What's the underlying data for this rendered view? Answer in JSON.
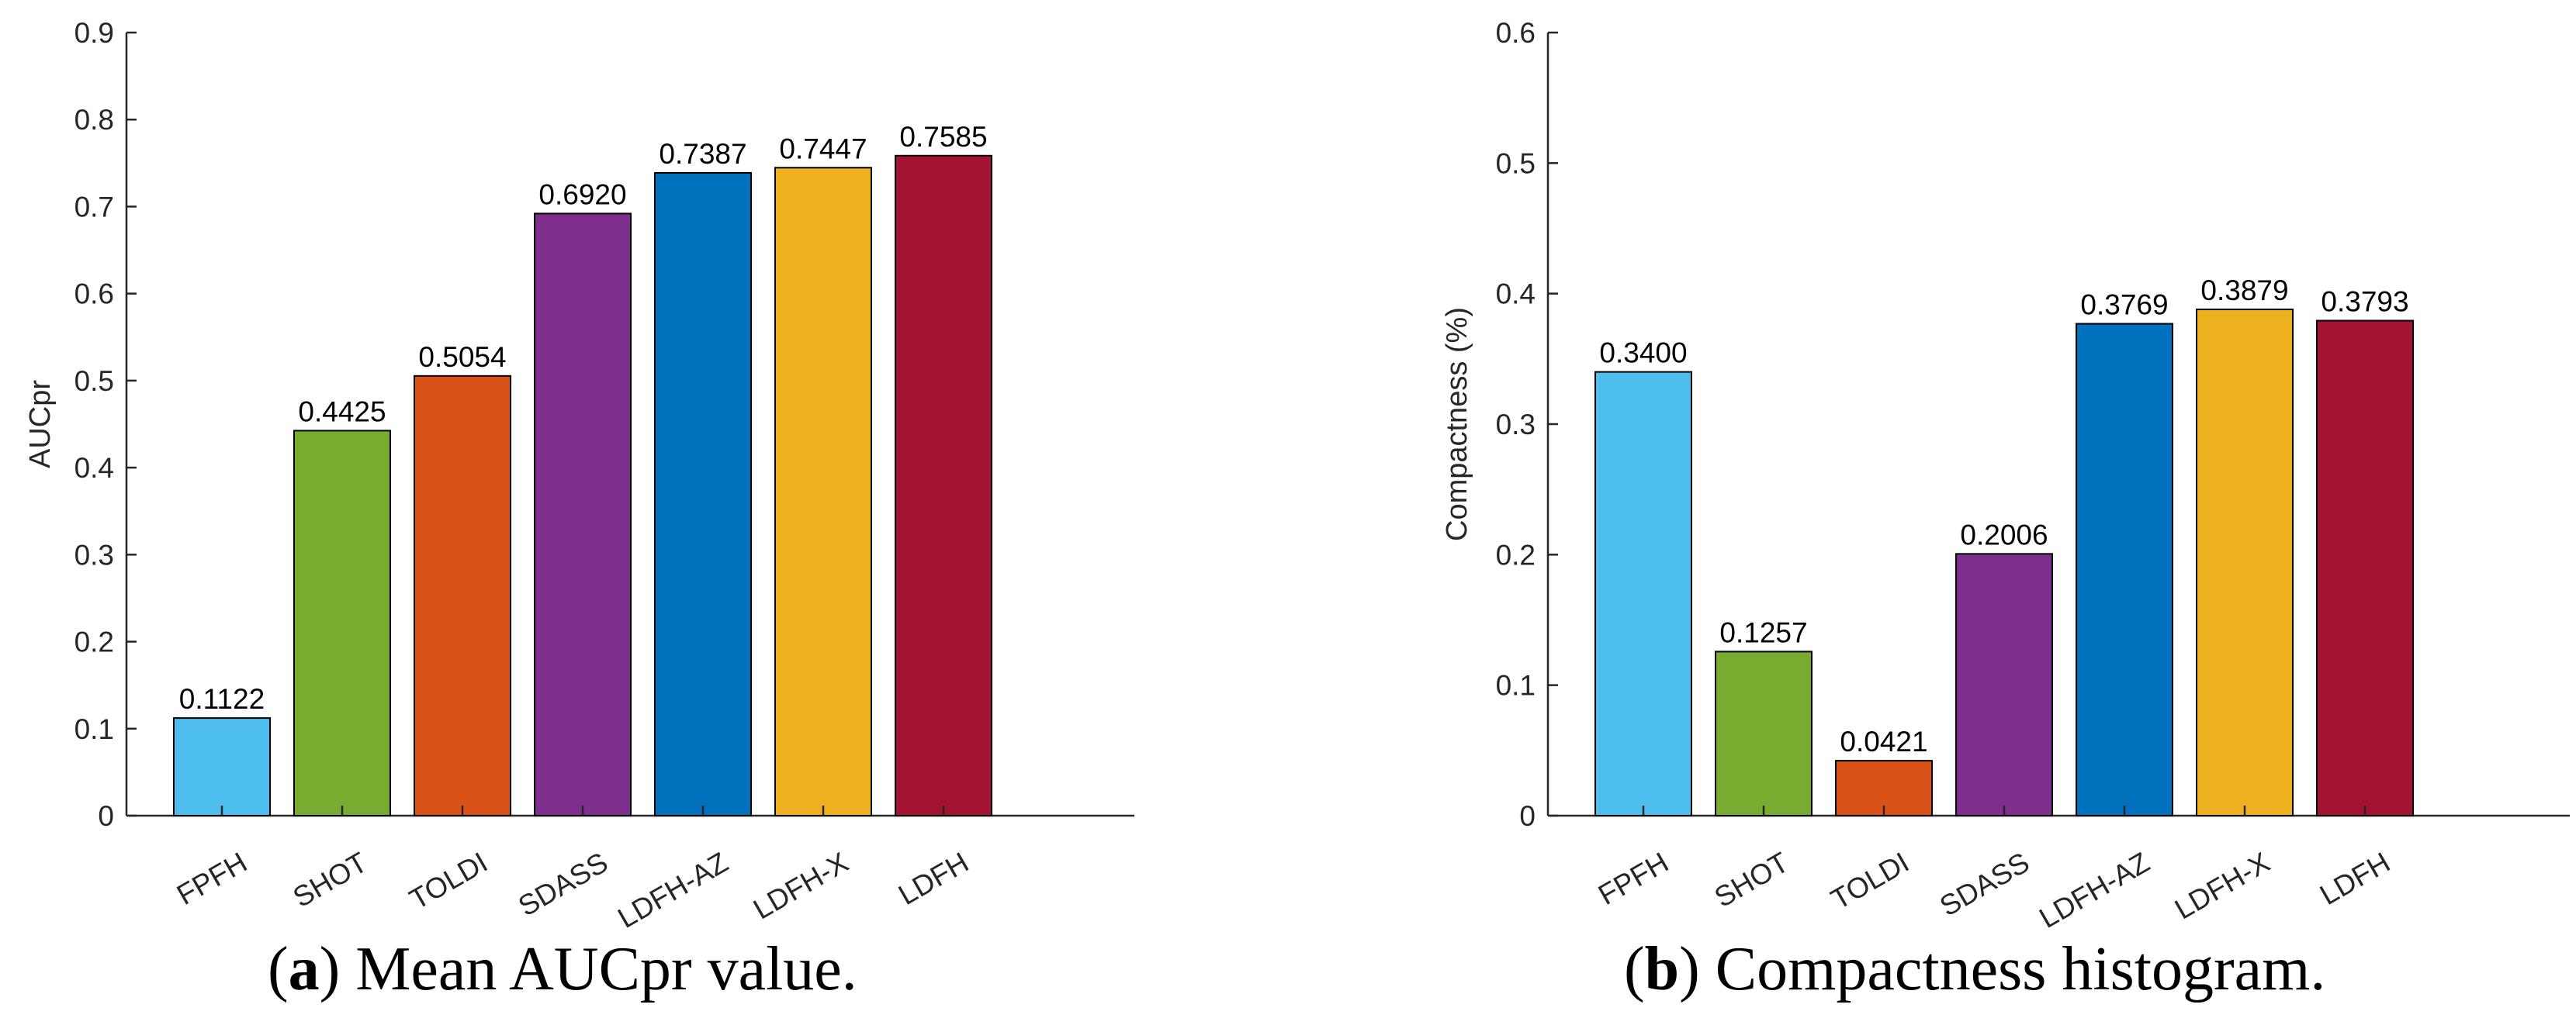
{
  "chart_data": [
    {
      "type": "bar",
      "title": "",
      "xlabel": "",
      "ylabel": "AUCpr",
      "ylim": [
        0,
        0.9
      ],
      "yticks": [
        0,
        0.1,
        0.2,
        0.3,
        0.4,
        0.5,
        0.6,
        0.7,
        0.8,
        0.9
      ],
      "ytick_labels": [
        "0",
        "0.1",
        "0.2",
        "0.3",
        "0.4",
        "0.5",
        "0.6",
        "0.7",
        "0.8",
        "0.9"
      ],
      "grid": false,
      "categories": [
        "FPFH",
        "SHOT",
        "TOLDI",
        "SDASS",
        "LDFH-AZ",
        "LDFH-X",
        "LDFH"
      ],
      "values": [
        0.1122,
        0.4425,
        0.5054,
        0.692,
        0.7387,
        0.7447,
        0.7585
      ],
      "value_labels": [
        "0.1122",
        "0.4425",
        "0.5054",
        "0.6920",
        "0.7387",
        "0.7447",
        "0.7585"
      ],
      "colors": [
        "#4DBEEE",
        "#77AC30",
        "#D95319",
        "#7E2F8E",
        "#0072BD",
        "#EDB120",
        "#A2142F"
      ],
      "caption": {
        "letter": "a",
        "text": " Mean AUCpr value."
      }
    },
    {
      "type": "bar",
      "title": "",
      "xlabel": "",
      "ylabel": "Compactness (%)",
      "ylim": [
        0,
        0.6
      ],
      "yticks": [
        0,
        0.1,
        0.2,
        0.3,
        0.4,
        0.5,
        0.6
      ],
      "ytick_labels": [
        "0",
        "0.1",
        "0.2",
        "0.3",
        "0.4",
        "0.5",
        "0.6"
      ],
      "grid": false,
      "categories": [
        "FPFH",
        "SHOT",
        "TOLDI",
        "SDASS",
        "LDFH-AZ",
        "LDFH-X",
        "LDFH"
      ],
      "values": [
        0.34,
        0.1257,
        0.0421,
        0.2006,
        0.3769,
        0.3879,
        0.3793
      ],
      "value_labels": [
        "0.3400",
        "0.1257",
        "0.0421",
        "0.2006",
        "0.3769",
        "0.3879",
        "0.3793"
      ],
      "colors": [
        "#4DBEEE",
        "#77AC30",
        "#D95319",
        "#7E2F8E",
        "#0072BD",
        "#EDB120",
        "#A2142F"
      ],
      "caption": {
        "letter": "b",
        "text": " Compactness histogram."
      }
    }
  ]
}
